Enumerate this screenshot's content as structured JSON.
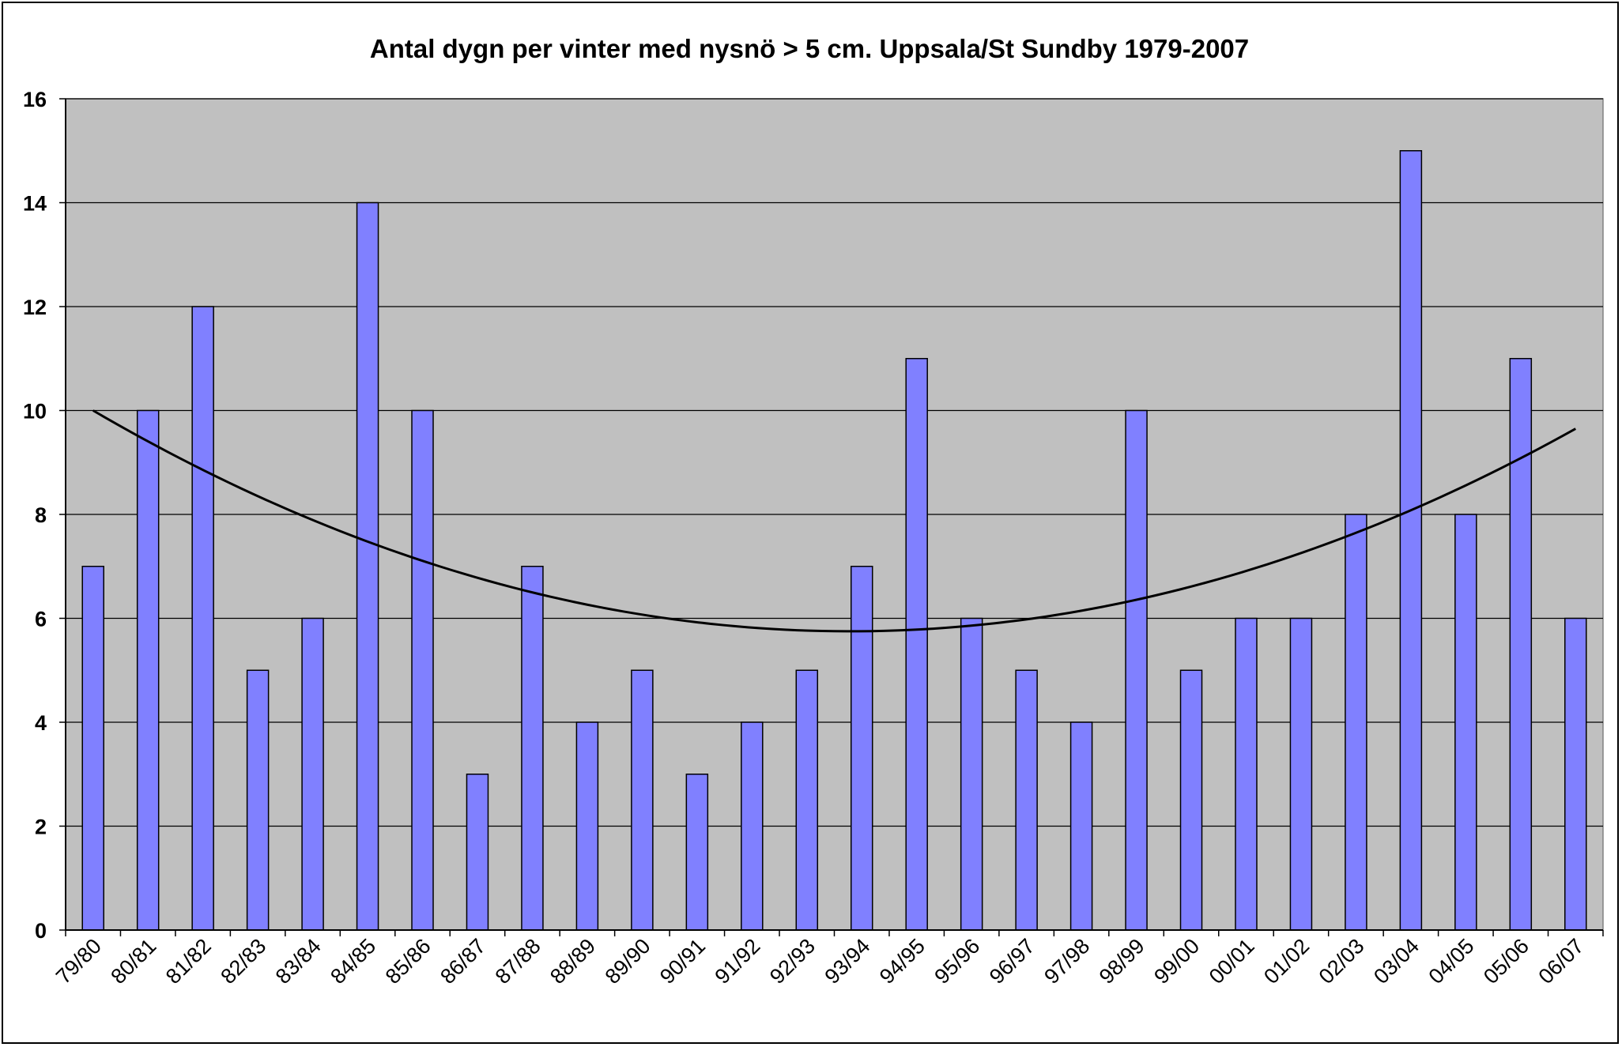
{
  "chart_data": {
    "type": "bar",
    "title": "Antal dygn per vinter med nysnö > 5 cm. Uppsala/St Sundby 1979-2007",
    "xlabel": "",
    "ylabel": "",
    "ylim": [
      0,
      16
    ],
    "yticks": [
      "0",
      "2",
      "4",
      "6",
      "8",
      "10",
      "12",
      "14",
      "16"
    ],
    "grid": true,
    "legend": "none",
    "categories": [
      "79/80",
      "80/81",
      "81/82",
      "82/83",
      "83/84",
      "84/85",
      "85/86",
      "86/87",
      "87/88",
      "88/89",
      "89/90",
      "90/91",
      "91/92",
      "92/93",
      "93/94",
      "94/95",
      "95/96",
      "96/97",
      "97/98",
      "98/99",
      "99/00",
      "00/01",
      "01/02",
      "02/03",
      "03/04",
      "04/05",
      "05/06",
      "06/07"
    ],
    "values": [
      7,
      10,
      12,
      5,
      6,
      14,
      10,
      3,
      7,
      4,
      5,
      3,
      4,
      5,
      7,
      11,
      6,
      5,
      4,
      10,
      5,
      6,
      6,
      8,
      15,
      8,
      11,
      6
    ],
    "trendline": {
      "type": "polynomial-2",
      "start_value": 10.0,
      "minimum_value": 5.75,
      "end_value": 9.65
    },
    "colors": {
      "bar_fill": "#8080FF",
      "bar_stroke": "#000000",
      "plot_background": "#C0C0C0",
      "gridline": "#000000",
      "trendline": "#000000"
    }
  }
}
